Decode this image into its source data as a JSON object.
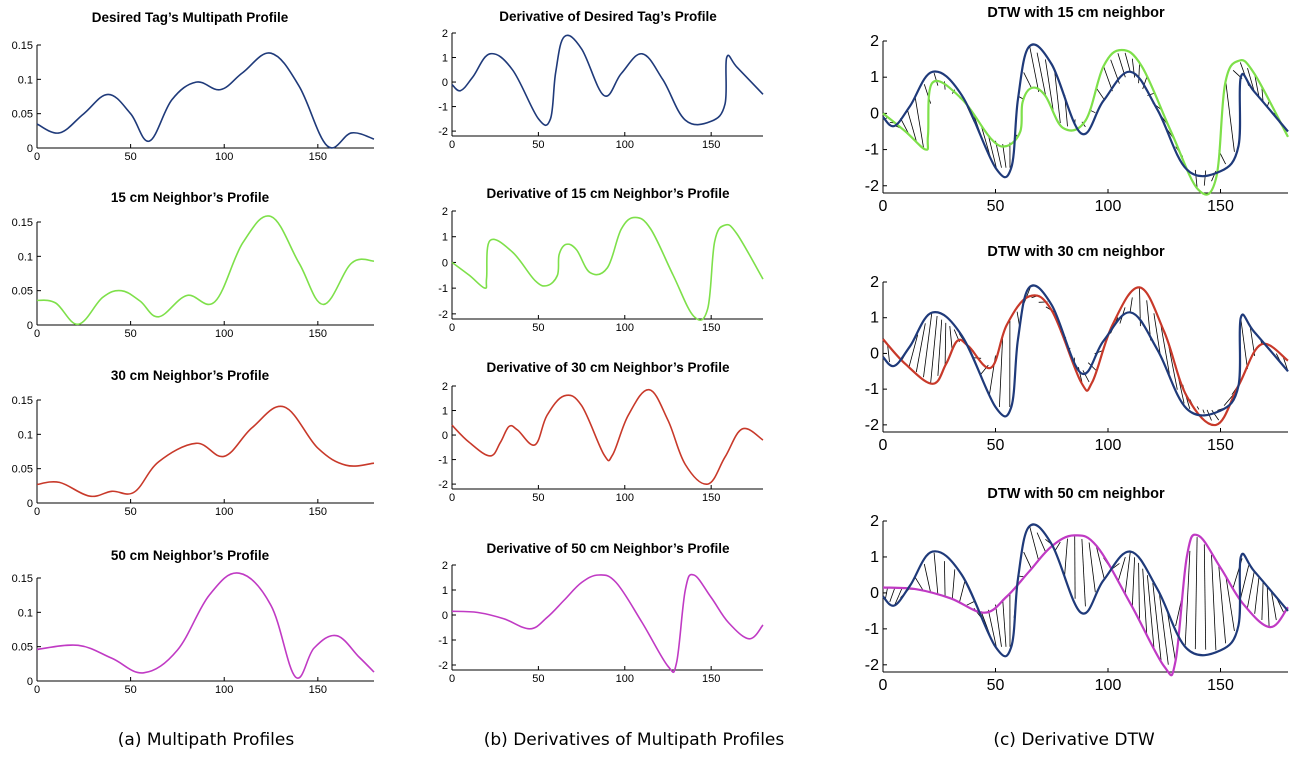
{
  "colors": {
    "desired": "#1f3a7a",
    "neighbor_15": "#7ee04a",
    "neighbor_30": "#c8392a",
    "neighbor_50": "#c03ac4",
    "match_lines": "#000000"
  },
  "captions": {
    "a": "(a) Multipath Profiles",
    "b": "(b) Derivatives of Multipath Profiles",
    "c": "(c) Derivative DTW"
  },
  "chart_data": [
    {
      "id": "a1",
      "type": "line",
      "title": "Desired Tag’s Multipath Profile",
      "xlim": [
        0,
        180
      ],
      "ylim": [
        0,
        0.15
      ],
      "xticks": [
        "0",
        "50",
        "100",
        "150"
      ],
      "yticks": [
        "0",
        "0.05",
        "0.1",
        "0.15"
      ],
      "grid": false,
      "series": [
        {
          "color_key": "desired",
          "x": [
            0,
            12,
            25,
            38,
            50,
            60,
            72,
            85,
            98,
            110,
            125,
            140,
            155,
            168,
            180
          ],
          "y": [
            0.035,
            0.022,
            0.05,
            0.078,
            0.05,
            0.01,
            0.07,
            0.096,
            0.085,
            0.11,
            0.138,
            0.09,
            0.003,
            0.022,
            0.013
          ]
        }
      ]
    },
    {
      "id": "a2",
      "type": "line",
      "title": "15 cm Neighbor’s Profile",
      "xlim": [
        0,
        180
      ],
      "ylim": [
        0,
        0.15
      ],
      "xticks": [
        "0",
        "50",
        "100",
        "150"
      ],
      "yticks": [
        "0",
        "0.05",
        "0.1",
        "0.15"
      ],
      "grid": false,
      "series": [
        {
          "color_key": "neighbor_15",
          "x": [
            0,
            10,
            22,
            35,
            45,
            55,
            65,
            80,
            95,
            110,
            125,
            140,
            153,
            168,
            180
          ],
          "y": [
            0.036,
            0.032,
            0.001,
            0.04,
            0.05,
            0.035,
            0.012,
            0.043,
            0.034,
            0.12,
            0.158,
            0.09,
            0.03,
            0.09,
            0.093
          ]
        }
      ]
    },
    {
      "id": "a3",
      "type": "line",
      "title": "30 cm Neighbor’s Profile",
      "xlim": [
        0,
        180
      ],
      "ylim": [
        0,
        0.15
      ],
      "xticks": [
        "0",
        "50",
        "100",
        "150"
      ],
      "yticks": [
        "0",
        "0.05",
        "0.1",
        "0.15"
      ],
      "grid": false,
      "series": [
        {
          "color_key": "neighbor_30",
          "x": [
            0,
            12,
            28,
            40,
            52,
            65,
            85,
            100,
            115,
            132,
            150,
            165,
            180
          ],
          "y": [
            0.027,
            0.03,
            0.01,
            0.017,
            0.016,
            0.06,
            0.087,
            0.068,
            0.11,
            0.14,
            0.08,
            0.055,
            0.058
          ]
        }
      ]
    },
    {
      "id": "a4",
      "type": "line",
      "title": "50 cm Neighbor’s Profile",
      "xlim": [
        0,
        180
      ],
      "ylim": [
        0,
        0.15
      ],
      "xticks": [
        "0",
        "50",
        "100",
        "150"
      ],
      "yticks": [
        "0",
        "0.05",
        "0.1",
        "0.15"
      ],
      "grid": false,
      "series": [
        {
          "color_key": "neighbor_50",
          "x": [
            0,
            22,
            40,
            57,
            75,
            92,
            108,
            125,
            138,
            148,
            160,
            172,
            180
          ],
          "y": [
            0.046,
            0.052,
            0.033,
            0.012,
            0.045,
            0.125,
            0.157,
            0.11,
            0.006,
            0.048,
            0.066,
            0.035,
            0.013
          ]
        }
      ]
    },
    {
      "id": "b1",
      "type": "line",
      "title": "Derivative of Desired Tag’s Profile",
      "xlim": [
        0,
        180
      ],
      "ylim": [
        -2.2,
        2
      ],
      "xticks": [
        "0",
        "50",
        "100",
        "150"
      ],
      "yticks": [
        "-2",
        "-1",
        "0",
        "1",
        "2"
      ],
      "grid": false,
      "series": [
        {
          "color_key": "desired",
          "x": [
            0,
            5,
            12,
            22,
            35,
            50,
            57,
            60,
            65,
            75,
            88,
            98,
            110,
            122,
            135,
            150,
            158,
            159,
            165,
            180
          ],
          "y": [
            -0.1,
            -0.35,
            0.2,
            1.15,
            0.5,
            -1.5,
            -1.5,
            0.4,
            1.85,
            1.35,
            -0.55,
            0.35,
            1.15,
            0.1,
            -1.55,
            -1.6,
            -0.9,
            1.0,
            0.6,
            -0.5
          ]
        }
      ]
    },
    {
      "id": "b2",
      "type": "line",
      "title": "Derivative of 15 cm Neighbor’s Profile",
      "xlim": [
        0,
        180
      ],
      "ylim": [
        -2.2,
        2
      ],
      "xticks": [
        "0",
        "50",
        "100",
        "150"
      ],
      "yticks": [
        "-2",
        "-1",
        "0",
        "1",
        "2"
      ],
      "grid": false,
      "series": [
        {
          "color_key": "neighbor_15",
          "x": [
            0,
            10,
            19,
            20,
            22,
            35,
            48,
            55,
            61,
            62,
            66,
            72,
            80,
            90,
            98,
            106,
            115,
            128,
            140,
            148,
            152,
            158,
            165,
            180
          ],
          "y": [
            0.0,
            -0.5,
            -1.0,
            -0.6,
            0.85,
            0.4,
            -0.7,
            -0.9,
            -0.5,
            0.3,
            0.7,
            0.5,
            -0.4,
            -0.2,
            1.3,
            1.75,
            1.3,
            -0.5,
            -2.1,
            -1.8,
            0.8,
            1.45,
            1.1,
            -0.65
          ]
        }
      ]
    },
    {
      "id": "b3",
      "type": "line",
      "title": "Derivative of 30 cm Neighbor’s Profile",
      "xlim": [
        0,
        180
      ],
      "ylim": [
        -2.2,
        2
      ],
      "xticks": [
        "0",
        "50",
        "100",
        "150"
      ],
      "yticks": [
        "-2",
        "-1",
        "0",
        "1",
        "2"
      ],
      "grid": false,
      "series": [
        {
          "color_key": "neighbor_30",
          "x": [
            0,
            10,
            22,
            28,
            33,
            38,
            48,
            55,
            65,
            75,
            88,
            93,
            102,
            114,
            125,
            135,
            148,
            158,
            168,
            180
          ],
          "y": [
            0.4,
            -0.3,
            -0.85,
            -0.3,
            0.35,
            0.2,
            -0.4,
            0.8,
            1.6,
            1.2,
            -0.8,
            -0.8,
            0.8,
            1.85,
            0.6,
            -1.2,
            -2.0,
            -0.9,
            0.25,
            -0.2
          ]
        }
      ]
    },
    {
      "id": "b4",
      "type": "line",
      "title": "Derivative of 50 cm Neighbor’s Profile",
      "xlim": [
        0,
        180
      ],
      "ylim": [
        -2.2,
        2
      ],
      "xticks": [
        "0",
        "50",
        "100",
        "150"
      ],
      "yticks": [
        "-2",
        "-1",
        "0",
        "1",
        "2"
      ],
      "grid": false,
      "series": [
        {
          "color_key": "neighbor_50",
          "x": [
            0,
            15,
            30,
            45,
            55,
            65,
            75,
            85,
            95,
            110,
            125,
            130,
            135,
            140,
            150,
            160,
            172,
            180
          ],
          "y": [
            0.15,
            0.1,
            -0.15,
            -0.55,
            -0.1,
            0.6,
            1.3,
            1.6,
            1.3,
            -0.3,
            -2.05,
            -1.9,
            1.0,
            1.6,
            0.7,
            -0.3,
            -0.95,
            -0.4
          ]
        }
      ]
    },
    {
      "id": "c1",
      "type": "line",
      "title": "DTW with 15 cm neighbor",
      "xlim": [
        0,
        180
      ],
      "ylim": [
        -2.2,
        2
      ],
      "xticks": [
        "0",
        "50",
        "100",
        "150"
      ],
      "yticks": [
        "-2",
        "-1",
        "0",
        "1",
        "2"
      ],
      "grid": false,
      "series": [
        {
          "color_key": "neighbor_15",
          "x": [
            0,
            10,
            19,
            20,
            22,
            35,
            48,
            55,
            61,
            62,
            66,
            72,
            80,
            90,
            98,
            106,
            115,
            128,
            140,
            148,
            152,
            158,
            165,
            180
          ],
          "y": [
            0.0,
            -0.5,
            -1.0,
            -0.6,
            0.85,
            0.4,
            -0.7,
            -0.9,
            -0.5,
            0.3,
            0.7,
            0.5,
            -0.4,
            -0.2,
            1.3,
            1.75,
            1.3,
            -0.5,
            -2.1,
            -1.8,
            0.8,
            1.45,
            1.1,
            -0.65
          ]
        },
        {
          "color_key": "desired",
          "x": [
            0,
            5,
            12,
            22,
            35,
            50,
            57,
            60,
            65,
            75,
            88,
            98,
            110,
            122,
            135,
            150,
            158,
            159,
            165,
            180
          ],
          "y": [
            -0.1,
            -0.35,
            0.2,
            1.15,
            0.5,
            -1.5,
            -1.5,
            0.4,
            1.85,
            1.35,
            -0.55,
            0.35,
            1.15,
            0.1,
            -1.55,
            -1.6,
            -0.9,
            1.0,
            0.6,
            -0.5
          ]
        }
      ]
    },
    {
      "id": "c2",
      "type": "line",
      "title": "DTW with 30 cm neighbor",
      "xlim": [
        0,
        180
      ],
      "ylim": [
        -2.2,
        2
      ],
      "xticks": [
        "0",
        "50",
        "100",
        "150"
      ],
      "yticks": [
        "-2",
        "-1",
        "0",
        "1",
        "2"
      ],
      "grid": false,
      "series": [
        {
          "color_key": "neighbor_30",
          "x": [
            0,
            10,
            22,
            28,
            33,
            38,
            48,
            55,
            65,
            75,
            88,
            93,
            102,
            114,
            125,
            135,
            148,
            158,
            168,
            180
          ],
          "y": [
            0.4,
            -0.3,
            -0.85,
            -0.3,
            0.35,
            0.2,
            -0.4,
            0.8,
            1.6,
            1.2,
            -0.8,
            -0.8,
            0.8,
            1.85,
            0.6,
            -1.2,
            -2.0,
            -0.9,
            0.25,
            -0.2
          ]
        },
        {
          "color_key": "desired",
          "x": [
            0,
            5,
            12,
            22,
            35,
            50,
            57,
            60,
            65,
            75,
            88,
            98,
            110,
            122,
            135,
            150,
            158,
            159,
            165,
            180
          ],
          "y": [
            -0.1,
            -0.35,
            0.2,
            1.15,
            0.5,
            -1.5,
            -1.5,
            0.4,
            1.85,
            1.35,
            -0.55,
            0.35,
            1.15,
            0.1,
            -1.55,
            -1.6,
            -0.9,
            1.0,
            0.6,
            -0.5
          ]
        }
      ]
    },
    {
      "id": "c3",
      "type": "line",
      "title": "DTW with 50 cm neighbor",
      "xlim": [
        0,
        180
      ],
      "ylim": [
        -2.2,
        2
      ],
      "xticks": [
        "0",
        "50",
        "100",
        "150"
      ],
      "yticks": [
        "-2",
        "-1",
        "0",
        "1",
        "2"
      ],
      "grid": false,
      "series": [
        {
          "color_key": "neighbor_50",
          "x": [
            0,
            15,
            30,
            45,
            55,
            65,
            75,
            85,
            95,
            110,
            125,
            130,
            135,
            140,
            150,
            160,
            172,
            180
          ],
          "y": [
            0.15,
            0.1,
            -0.15,
            -0.55,
            -0.1,
            0.6,
            1.3,
            1.6,
            1.3,
            -0.3,
            -2.05,
            -1.9,
            1.0,
            1.6,
            0.7,
            -0.3,
            -0.95,
            -0.4
          ]
        },
        {
          "color_key": "desired",
          "x": [
            0,
            5,
            12,
            22,
            35,
            50,
            57,
            60,
            65,
            75,
            88,
            98,
            110,
            122,
            135,
            150,
            158,
            159,
            165,
            180
          ],
          "y": [
            -0.1,
            -0.35,
            0.2,
            1.15,
            0.5,
            -1.5,
            -1.5,
            0.4,
            1.85,
            1.35,
            -0.55,
            0.35,
            1.15,
            0.1,
            -1.55,
            -1.6,
            -0.9,
            1.0,
            0.6,
            -0.5
          ]
        }
      ]
    }
  ]
}
